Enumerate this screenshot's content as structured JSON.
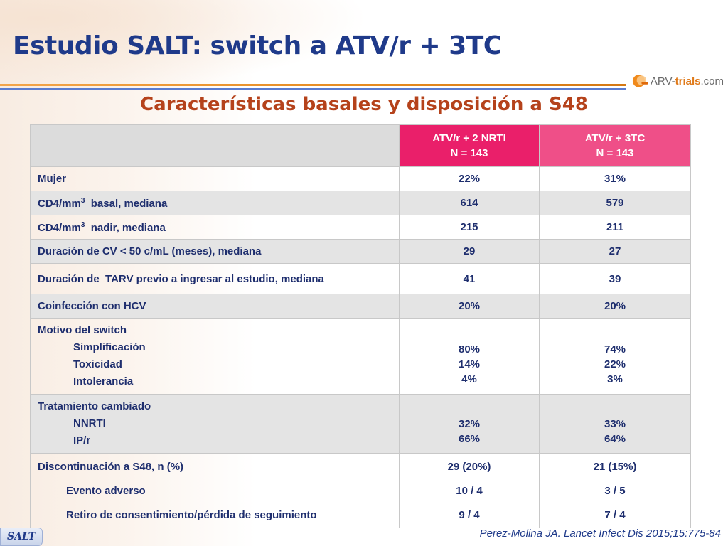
{
  "slide": {
    "title": "Estudio SALT: switch a ATV/r + 3TC",
    "subtitle": "Características basales y disposición a S48",
    "logo": {
      "text_main": "ARV-",
      "text_accent": "trials",
      "text_suffix": ".com"
    }
  },
  "table": {
    "headers": {
      "arm1_line1": "ATV/r + 2 NRTI",
      "arm1_line2": "N = 143",
      "arm2_line1": "ATV/r + 3TC",
      "arm2_line2": "N = 143"
    },
    "rows": [
      {
        "label": "Mujer",
        "arm1": "22%",
        "arm2": "31%"
      },
      {
        "label_pre": "CD4/mm",
        "label_sup": "3",
        "label_post": "  basal, mediana",
        "arm1": "614",
        "arm2": "579"
      },
      {
        "label_pre": "CD4/mm",
        "label_sup": "3",
        "label_post": "  nadir, mediana",
        "arm1": "215",
        "arm2": "211"
      },
      {
        "label": "Duración de CV < 50 c/mL (meses), mediana",
        "arm1": "29",
        "arm2": "27"
      },
      {
        "label": "Duración de  TARV previo a ingresar al estudio, mediana",
        "arm1": "41",
        "arm2": "39"
      },
      {
        "label": "Coinfección con HCV",
        "arm1": "20%",
        "arm2": "20%"
      }
    ],
    "switch_reason": {
      "label": "Motivo del switch",
      "items": [
        "Simplificación",
        "Toxicidad",
        "Intolerancia"
      ],
      "arm1": [
        "80%",
        "14%",
        "4%"
      ],
      "arm2": [
        "74%",
        "22%",
        "3%"
      ]
    },
    "changed_treatment": {
      "label": "Tratamiento cambiado",
      "items": [
        "NNRTI",
        "IP/r"
      ],
      "arm1": [
        "32%",
        "66%"
      ],
      "arm2": [
        "33%",
        "64%"
      ]
    },
    "discontinuation": {
      "label": "Discontinuación a S48, n (%)",
      "arm1": "29 (20%)",
      "arm2": "21 (15%)",
      "items": [
        {
          "label": "Evento adverso",
          "arm1": "10 / 4",
          "arm2": "3 / 5"
        },
        {
          "label": "Retiro de consentimiento/pérdida de seguimiento",
          "arm1": "9 / 4",
          "arm2": "7 / 4"
        }
      ]
    }
  },
  "footer": {
    "badge": "SALT",
    "citation": "Perez-Molina JA. Lancet Infect Dis 2015;15:775-84"
  }
}
